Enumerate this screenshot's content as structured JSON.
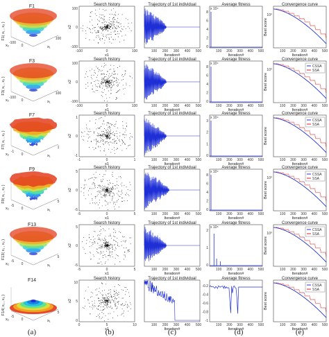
{
  "colors": {
    "cssa": "#2233cc",
    "ssa": "#dd2222",
    "traj": "#1f2fd6",
    "scatter": "#111111",
    "cap": "#222222"
  },
  "captions": [
    "(a)",
    "(b)",
    "(c)",
    "(d)",
    "(e)"
  ],
  "panel_titles": {
    "search": "Search history",
    "trajectory": "Trajectory of 1st individual",
    "fitness": "Average fitness",
    "convergence": "Convergence curve"
  },
  "axis_labels": {
    "iteration": "Iteration#",
    "best_score": "Best score",
    "x1": "x1",
    "x2": "x2",
    "x1_3d": "x₁",
    "x2_3d": "x₂"
  },
  "rows": [
    {
      "fn": "F1",
      "zlabel": "F1( x₁ , x₂ )",
      "search_ticks": [
        "-100",
        "0",
        "100"
      ],
      "surface_ticks": [
        "-100",
        "0",
        "100"
      ],
      "fitness_sci": "x 10⁴",
      "fitness_ticks": [
        "8",
        "6",
        "4",
        "2",
        "0"
      ],
      "traj_ticks": [
        "100",
        "200",
        "300",
        "400",
        "500"
      ],
      "conv_exp": "10⁰",
      "has_legend": false
    },
    {
      "fn": "F3",
      "zlabel": "F3( x₁ , x₂ )",
      "search_ticks": [
        "-100",
        "0",
        "100"
      ],
      "surface_ticks": [
        "-100",
        "0",
        "100"
      ],
      "fitness_sci": "x 10⁴",
      "fitness_ticks": [
        "8",
        "6",
        "4",
        "2",
        "0"
      ],
      "traj_ticks": [
        "100",
        "200",
        "300",
        "400",
        "500"
      ],
      "conv_exp": "10⁰",
      "has_legend": true
    },
    {
      "fn": "F7",
      "zlabel": "F7( x₁ , x₂ )",
      "search_ticks": [
        "-1",
        "0",
        "1"
      ],
      "surface_ticks": [
        "-1",
        "0",
        "1"
      ],
      "fitness_sci": "x 10⁴",
      "fitness_ticks": [
        "3",
        "2",
        "1",
        "0"
      ],
      "traj_ticks": [
        "100",
        "200",
        "300",
        "400",
        "500"
      ],
      "conv_exp": "",
      "has_legend": true
    },
    {
      "fn": "F9",
      "zlabel": "F9( x₁ , x₂ )",
      "search_ticks": [
        "-5",
        "0",
        "5"
      ],
      "surface_ticks": [
        "-5",
        "0",
        "5"
      ],
      "fitness_sci": "x 10⁴",
      "fitness_ticks": [
        "8",
        "6",
        "4",
        "2",
        "0"
      ],
      "traj_ticks": [
        "100",
        "200",
        "300",
        "400",
        "500"
      ],
      "conv_exp": "10⁰",
      "has_legend": true
    },
    {
      "fn": "F13",
      "zlabel": "F13( x₁ , x₂ )",
      "search_ticks": [
        "-5",
        "0",
        "5"
      ],
      "surface_ticks": [
        "-5",
        "0",
        "5"
      ],
      "fitness_sci": "x 10⁸",
      "fitness_ticks": [
        "2",
        "1",
        "0"
      ],
      "traj_ticks": [
        "100",
        "200",
        "300",
        "400",
        "500"
      ],
      "conv_exp": "10⁰",
      "has_legend": true
    },
    {
      "fn": "F14",
      "zlabel": "F14( x₁ , x₂ )",
      "search_ticks": [
        "0",
        "5",
        "10"
      ],
      "surface_ticks": [
        "-5",
        "0",
        "5"
      ],
      "fitness_sci": "",
      "fitness_ticks": [
        "-0.2",
        "-0.4",
        "-0.6",
        "-0.8",
        "-1"
      ],
      "traj_ticks": [
        "100",
        "200",
        "300",
        "400",
        "500"
      ],
      "conv_exp": "",
      "has_legend": true
    }
  ],
  "legend": {
    "cssa": "CSSA",
    "ssa": "SSA"
  },
  "chart_data": [
    {
      "type": "line",
      "title": "Convergence curve",
      "xlabel": "Iteration#",
      "ylabel": "Best score",
      "xlim": [
        0,
        500
      ],
      "x": [
        0,
        100,
        200,
        300,
        400,
        500
      ],
      "series": [
        {
          "name": "CSSA",
          "values": [
            1.0,
            0.9,
            0.75,
            0.55,
            0.35,
            0.2
          ]
        },
        {
          "name": "SSA",
          "values": [
            1.0,
            0.92,
            0.8,
            0.65,
            0.5,
            0.38
          ]
        }
      ]
    }
  ]
}
